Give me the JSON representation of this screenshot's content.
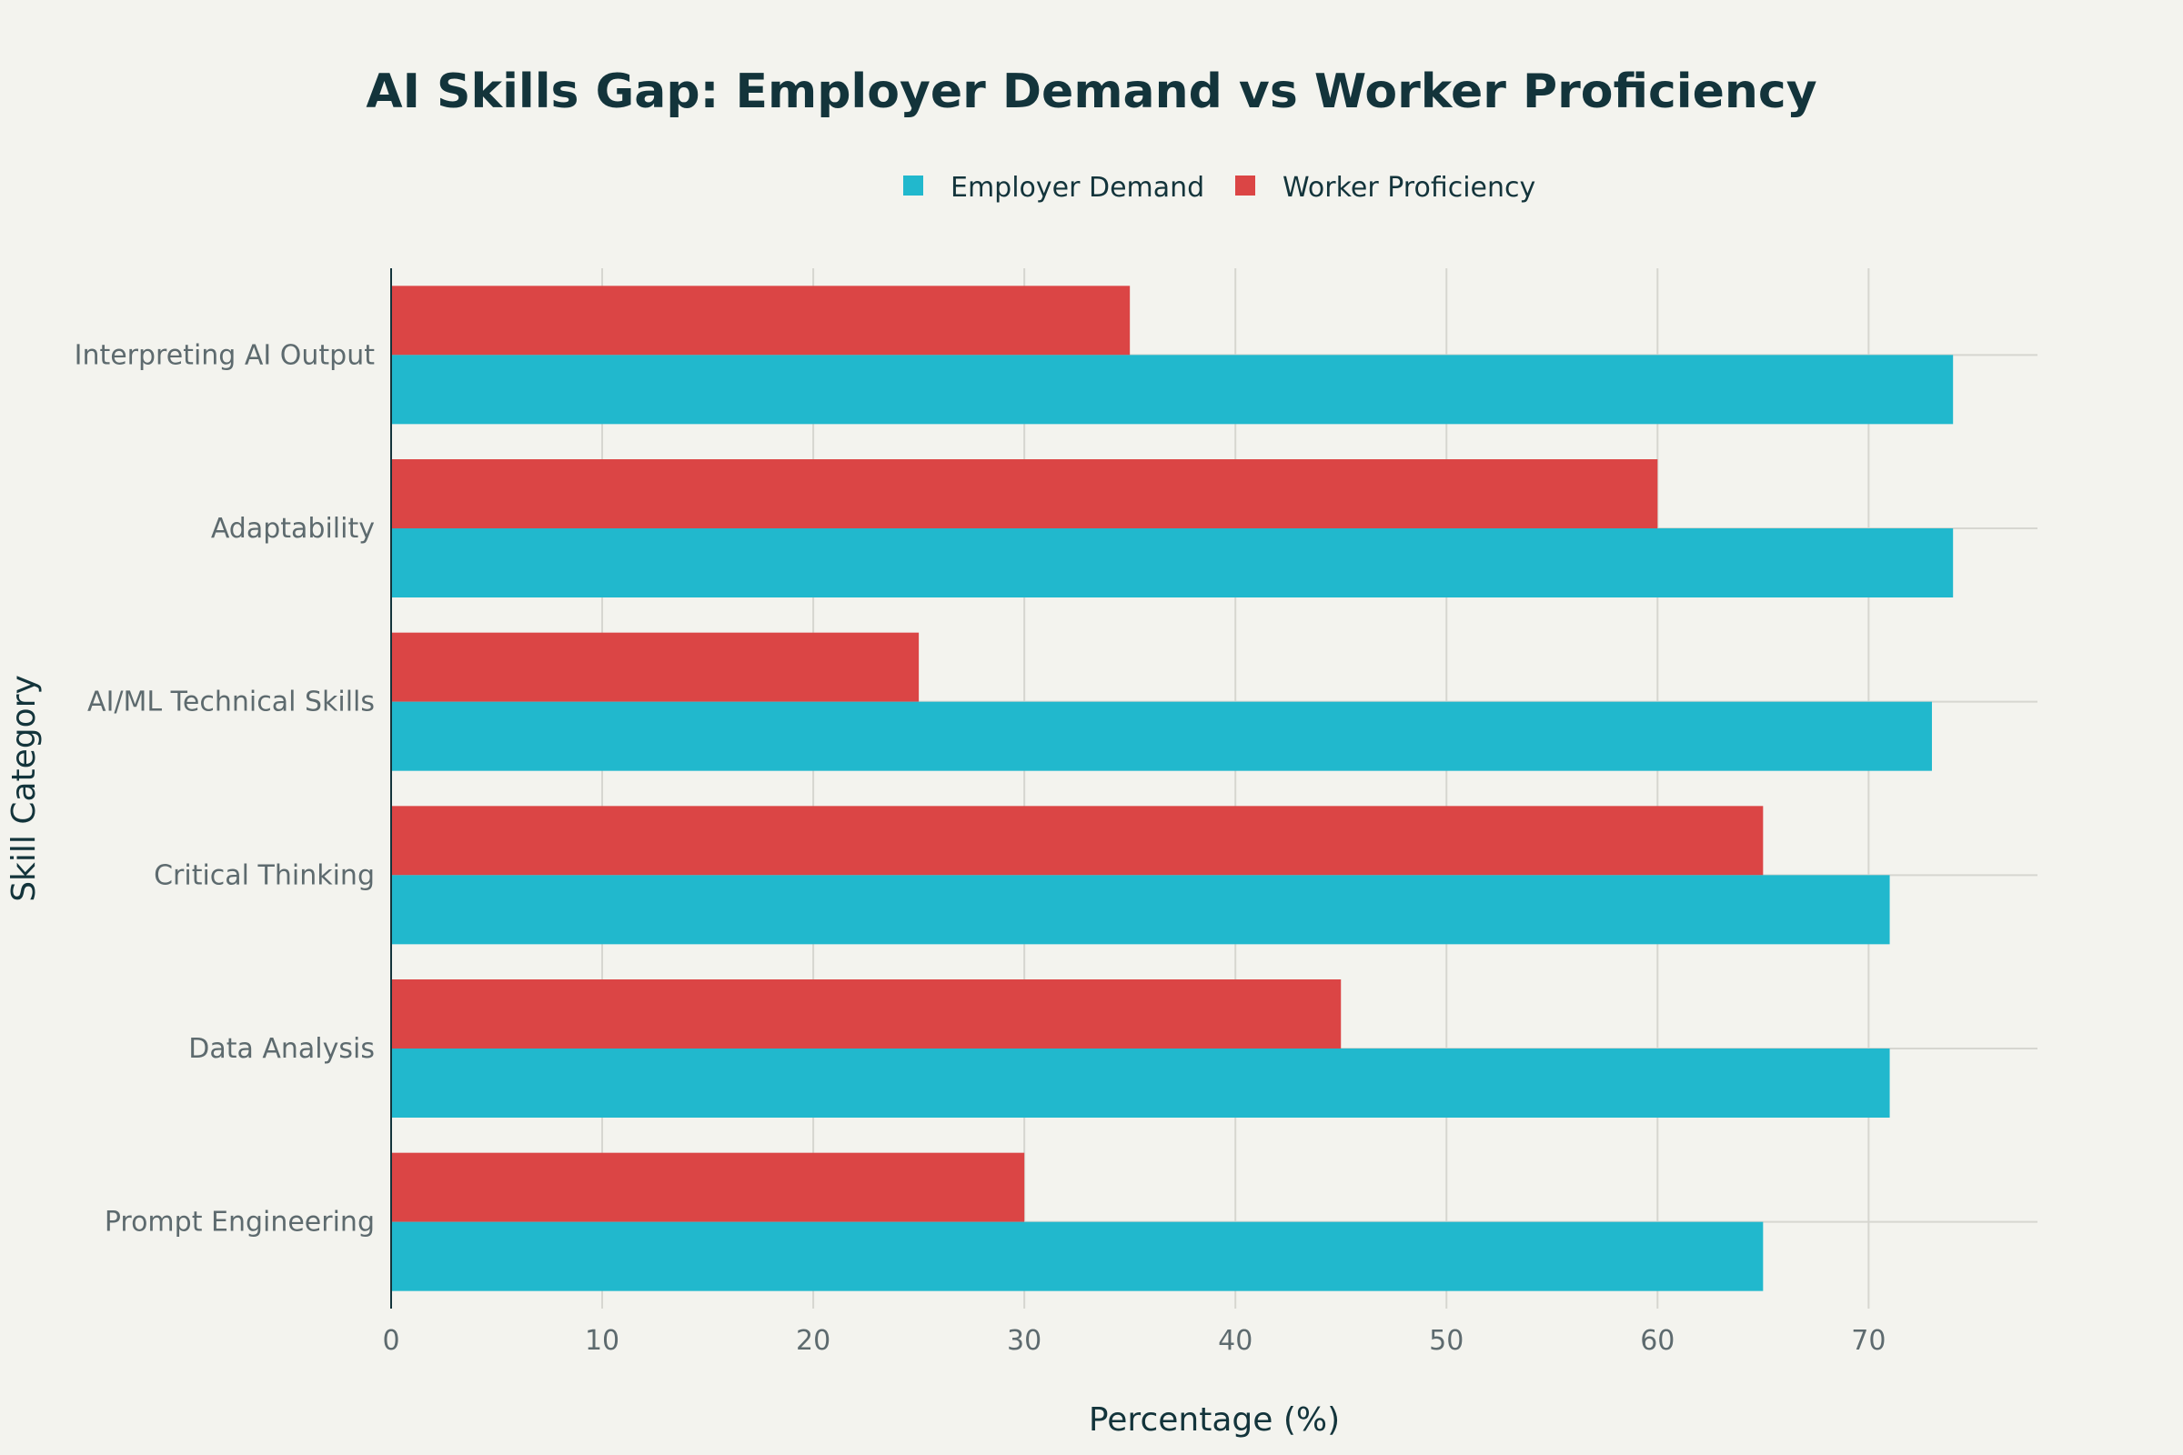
{
  "chart_data": {
    "type": "bar",
    "orientation": "horizontal",
    "title": "AI Skills Gap: Employer Demand vs Worker Proficiency",
    "xlabel": "Percentage (%)",
    "ylabel": "Skill Category",
    "xlim": [
      0,
      78
    ],
    "xticks": [
      0,
      10,
      20,
      30,
      40,
      50,
      60,
      70
    ],
    "grid": true,
    "legend_position": "top",
    "categories": [
      "Interpreting AI Output",
      "Adaptability",
      "AI/ML Technical Skills",
      "Critical Thinking",
      "Data Analysis",
      "Prompt Engineering"
    ],
    "series": [
      {
        "name": "Employer Demand",
        "color": "#21b8cd",
        "values": [
          74,
          74,
          73,
          71,
          71,
          65
        ]
      },
      {
        "name": "Worker Proficiency",
        "color": "#db4545",
        "values": [
          35,
          60,
          25,
          65,
          45,
          30
        ]
      }
    ]
  }
}
